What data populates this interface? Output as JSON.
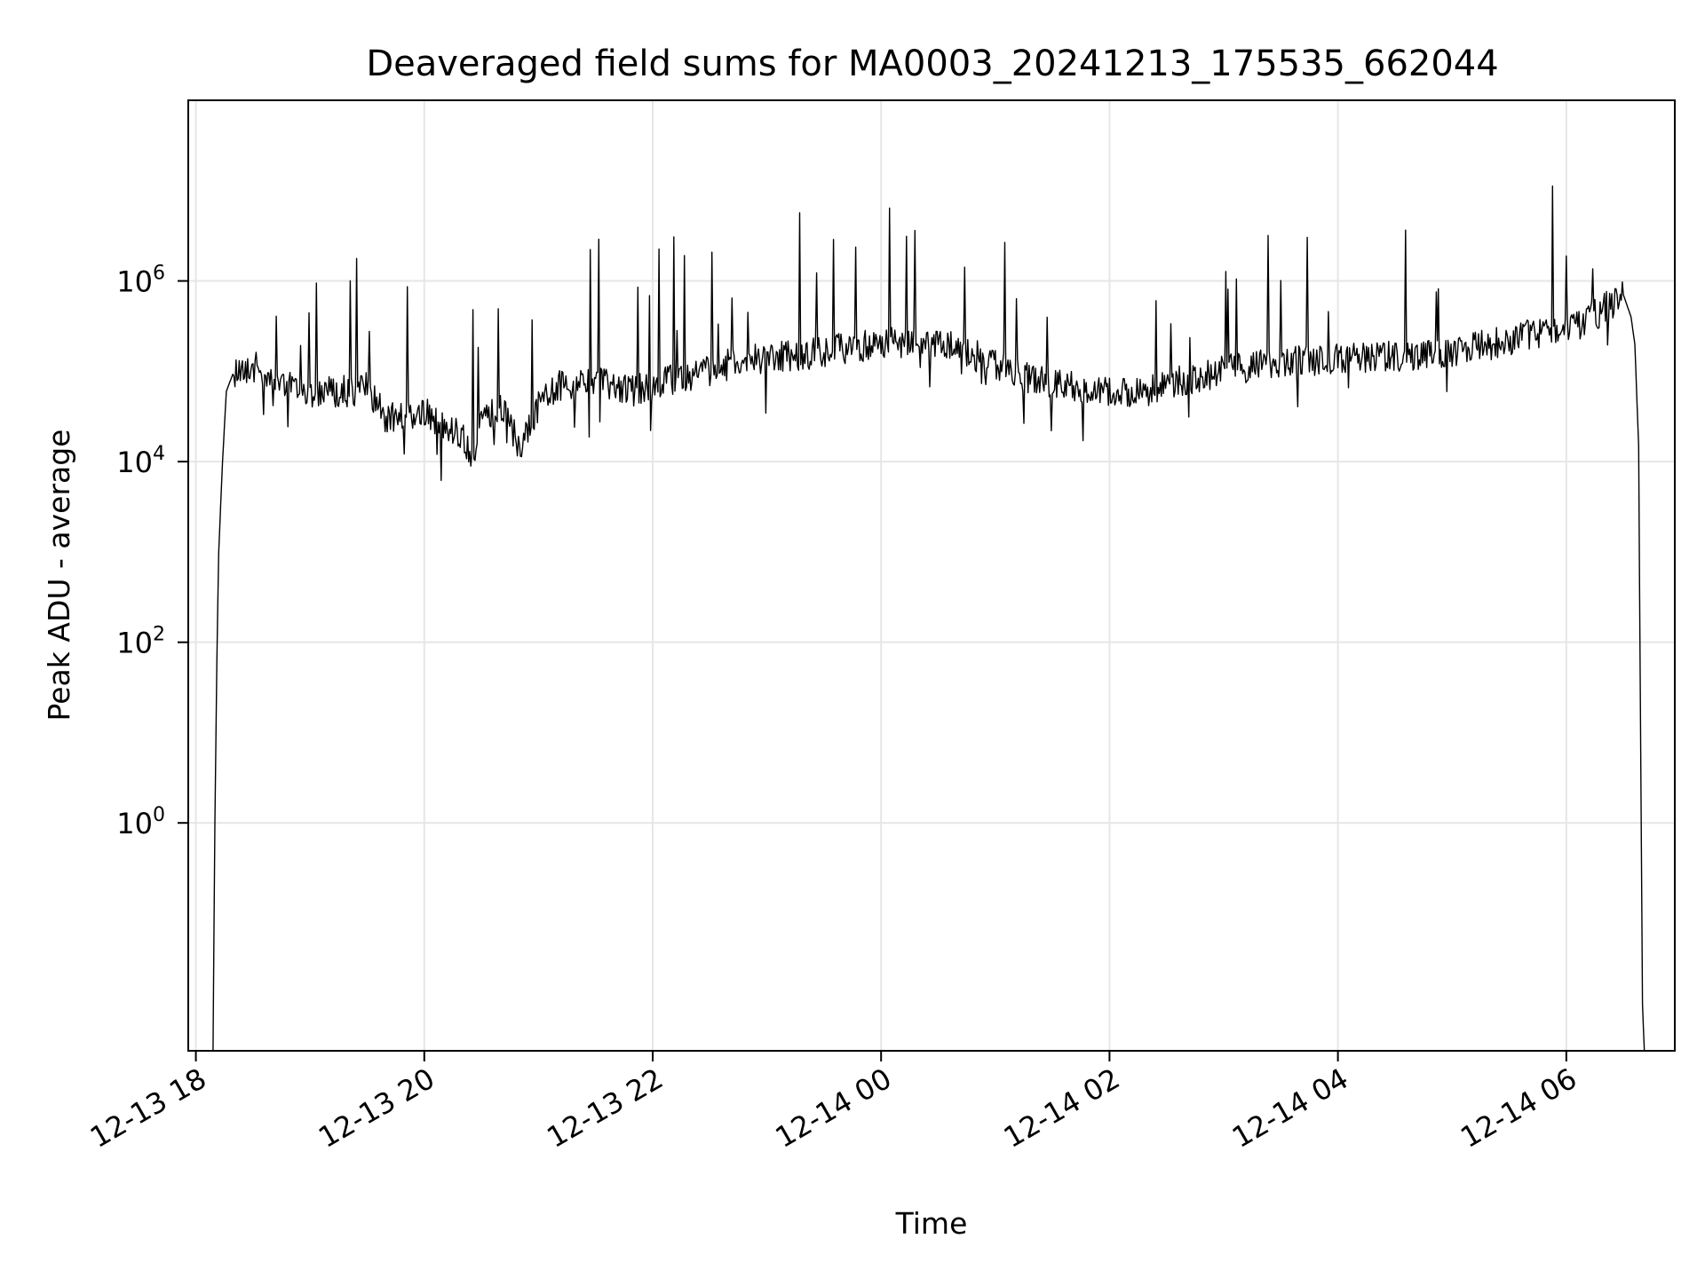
{
  "chart_data": {
    "type": "line",
    "title": "Deaveraged field sums for MA0003_20241213_175535_662044",
    "xlabel": "Time",
    "ylabel": "Peak ADU - average",
    "y_scale": "log",
    "ylim": [
      0.003,
      100000000.0
    ],
    "xlim": [
      "2024-12-13T17:56",
      "2024-12-14T06:57"
    ],
    "grid": true,
    "legend": "none",
    "line_color": "#000000",
    "x_ticks": [
      {
        "value": "2024-12-13T18:00",
        "label": "12-13 18"
      },
      {
        "value": "2024-12-13T20:00",
        "label": "12-13 20"
      },
      {
        "value": "2024-12-13T22:00",
        "label": "12-13 22"
      },
      {
        "value": "2024-12-14T00:00",
        "label": "12-14 00"
      },
      {
        "value": "2024-12-14T02:00",
        "label": "12-14 02"
      },
      {
        "value": "2024-12-14T04:00",
        "label": "12-14 04"
      },
      {
        "value": "2024-12-14T06:00",
        "label": "12-14 06"
      }
    ],
    "y_ticks": [
      {
        "value": 1,
        "base": "10",
        "exp": "0"
      },
      {
        "value": 100,
        "base": "10",
        "exp": "2"
      },
      {
        "value": 10000,
        "base": "10",
        "exp": "4"
      },
      {
        "value": 1000000,
        "base": "10",
        "exp": "6"
      }
    ],
    "series": [
      {
        "x": [
          "2024-12-13T18:09",
          "2024-12-13T18:10",
          "2024-12-13T18:11",
          "2024-12-13T18:12",
          "2024-12-13T18:14",
          "2024-12-13T18:16",
          "2024-12-13T18:20",
          "2024-12-13T18:25",
          "2024-12-13T18:30",
          "2024-12-13T18:40",
          "2024-12-13T18:50",
          "2024-12-13T19:00",
          "2024-12-13T19:10",
          "2024-12-13T19:20",
          "2024-12-13T19:30",
          "2024-12-13T19:40",
          "2024-12-13T19:50",
          "2024-12-13T20:00",
          "2024-12-13T20:10",
          "2024-12-13T20:20",
          "2024-12-13T20:25",
          "2024-12-13T20:30",
          "2024-12-13T20:40",
          "2024-12-13T20:50",
          "2024-12-13T21:00",
          "2024-12-13T21:10",
          "2024-12-13T21:20",
          "2024-12-13T21:30",
          "2024-12-13T21:40",
          "2024-12-13T21:50",
          "2024-12-13T22:00",
          "2024-12-13T22:20",
          "2024-12-13T22:40",
          "2024-12-13T23:00",
          "2024-12-13T23:20",
          "2024-12-13T23:40",
          "2024-12-14T00:00",
          "2024-12-14T00:20",
          "2024-12-14T00:40",
          "2024-12-14T01:00",
          "2024-12-14T01:20",
          "2024-12-14T01:40",
          "2024-12-14T02:00",
          "2024-12-14T02:20",
          "2024-12-14T02:40",
          "2024-12-14T03:00",
          "2024-12-14T03:20",
          "2024-12-14T03:40",
          "2024-12-14T04:00",
          "2024-12-14T04:20",
          "2024-12-14T04:40",
          "2024-12-14T05:00",
          "2024-12-14T05:20",
          "2024-12-14T05:40",
          "2024-12-14T06:00",
          "2024-12-14T06:10",
          "2024-12-14T06:20",
          "2024-12-14T06:30",
          "2024-12-14T06:34",
          "2024-12-14T06:36",
          "2024-12-14T06:38",
          "2024-12-14T06:40",
          "2024-12-14T06:41"
        ],
        "y": [
          0.003,
          1,
          60,
          1000,
          10000,
          60000,
          100000,
          110000,
          110000,
          100000,
          70000,
          60000,
          60000,
          60000,
          65000,
          30000,
          30000,
          35000,
          25000,
          20000,
          10000,
          30000,
          40000,
          15000,
          40000,
          70000,
          70000,
          80000,
          70000,
          60000,
          70000,
          90000,
          120000,
          140000,
          150000,
          180000,
          200000,
          220000,
          180000,
          120000,
          80000,
          70000,
          60000,
          60000,
          80000,
          100000,
          120000,
          130000,
          140000,
          140000,
          150000,
          170000,
          200000,
          250000,
          300000,
          350000,
          500000,
          700000,
          400000,
          200000,
          15000,
          0.01,
          0.003
        ]
      }
    ]
  }
}
